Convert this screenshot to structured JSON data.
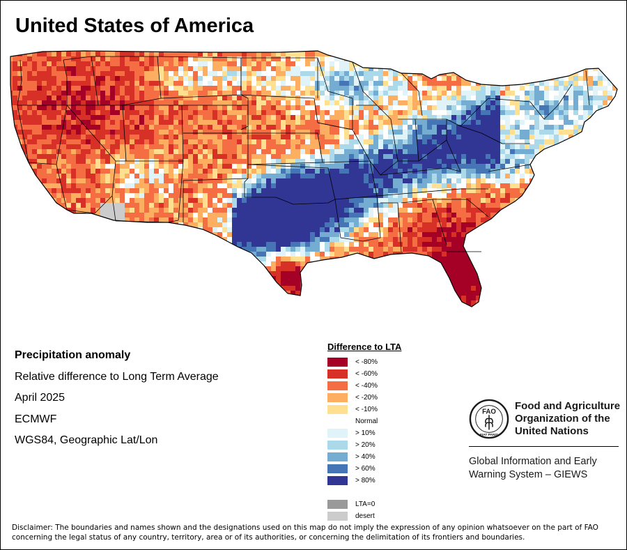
{
  "title": "United States of America",
  "info": {
    "heading": "Precipitation anomaly",
    "line1": "Relative difference to Long Term Average",
    "line2": "April 2025",
    "line3": "ECMWF",
    "line4": "WGS84, Geographic Lat/Lon"
  },
  "legend": {
    "title": "Difference to LTA",
    "classes": [
      {
        "label": "< -80%",
        "color": "#a50026"
      },
      {
        "label": "< -60%",
        "color": "#d73027"
      },
      {
        "label": "< -40%",
        "color": "#f46d43"
      },
      {
        "label": "< -20%",
        "color": "#fdae61"
      },
      {
        "label": "< -10%",
        "color": "#fee090"
      },
      {
        "label": "Normal",
        "color": "#ffffff"
      },
      {
        "label": "> 10%",
        "color": "#e0f3f8"
      },
      {
        "label": "> 20%",
        "color": "#abd9e9"
      },
      {
        "label": "> 40%",
        "color": "#74add1"
      },
      {
        "label": "> 60%",
        "color": "#4575b4"
      },
      {
        "label": "> 80%",
        "color": "#313695"
      }
    ],
    "extra": [
      {
        "label": "LTA=0",
        "color": "#999999"
      },
      {
        "label": "desert",
        "color": "#cccccc"
      }
    ]
  },
  "organization": {
    "emblem_text": "FAO",
    "emblem_motto": "FIAT PANIS",
    "name_line1": "Food and Agriculture",
    "name_line2": "Organization of the",
    "name_line3": "United Nations",
    "system_line1": "Global Information and Early",
    "system_line2": "Warning System – GIEWS"
  },
  "disclaimer": "Disclaimer: The boundaries and names shown and the designations used on this map do not imply the expression of any opinion whatsoever on the part of FAO concerning the legal status of any country, territory, area or of its authorities, or concerning the delimitation of its frontiers and boundaries.",
  "map_regions": [
    {
      "region": "Pacific Northwest",
      "anomaly_class": "< -60%"
    },
    {
      "region": "California",
      "anomaly_class": "< -40%"
    },
    {
      "region": "Southern Arizona",
      "anomaly_class": "desert"
    },
    {
      "region": "Southern Plains",
      "anomaly_class": "> 80%"
    },
    {
      "region": "Ohio Valley",
      "anomaly_class": "> 80%"
    },
    {
      "region": "Upper Midwest",
      "anomaly_class": "> 60%"
    },
    {
      "region": "Florida",
      "anomaly_class": "< -80%"
    },
    {
      "region": "South Texas",
      "anomaly_class": "< -60%"
    },
    {
      "region": "Southeast",
      "anomaly_class": "< -40%"
    },
    {
      "region": "Northeast",
      "anomaly_class": "> 20%"
    }
  ]
}
